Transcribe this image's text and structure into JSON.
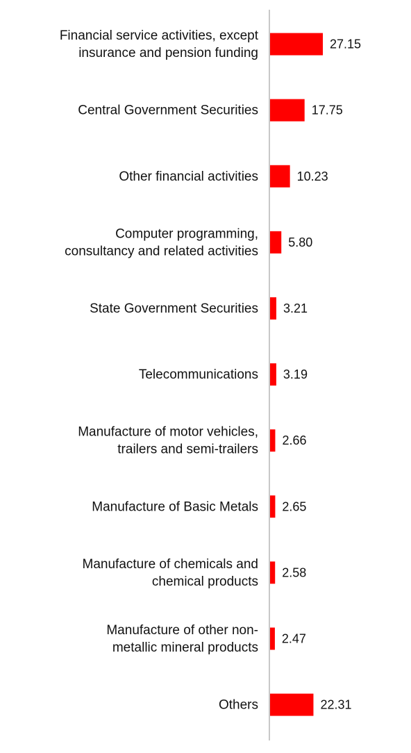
{
  "chart_data": {
    "type": "bar",
    "orientation": "horizontal",
    "categories": [
      [
        "Financial service activities, except",
        "insurance and pension funding"
      ],
      [
        "Central Government Securities"
      ],
      [
        "Other financial activities"
      ],
      [
        "Computer programming,",
        "consultancy and related activities"
      ],
      [
        "State Government Securities"
      ],
      [
        "Telecommunications"
      ],
      [
        "Manufacture of motor vehicles,",
        "trailers and semi-trailers"
      ],
      [
        "Manufacture of Basic Metals"
      ],
      [
        "Manufacture of chemicals and",
        "chemical products"
      ],
      [
        "Manufacture of other non-",
        "metallic mineral products"
      ],
      [
        "Others"
      ]
    ],
    "values": [
      27.15,
      17.75,
      10.23,
      5.8,
      3.21,
      3.19,
      2.66,
      2.65,
      2.58,
      2.47,
      22.31
    ],
    "value_labels": [
      "27.15",
      "17.75",
      "10.23",
      "5.80",
      "3.21",
      "3.19",
      "2.66",
      "2.65",
      "2.58",
      "2.47",
      "22.31"
    ],
    "title": "",
    "xlabel": "",
    "ylabel": "",
    "xlim": [
      0,
      30
    ],
    "grid": false,
    "legend": "none",
    "bar_color": "#ff0000",
    "axis_color": "#c8c8c8"
  }
}
